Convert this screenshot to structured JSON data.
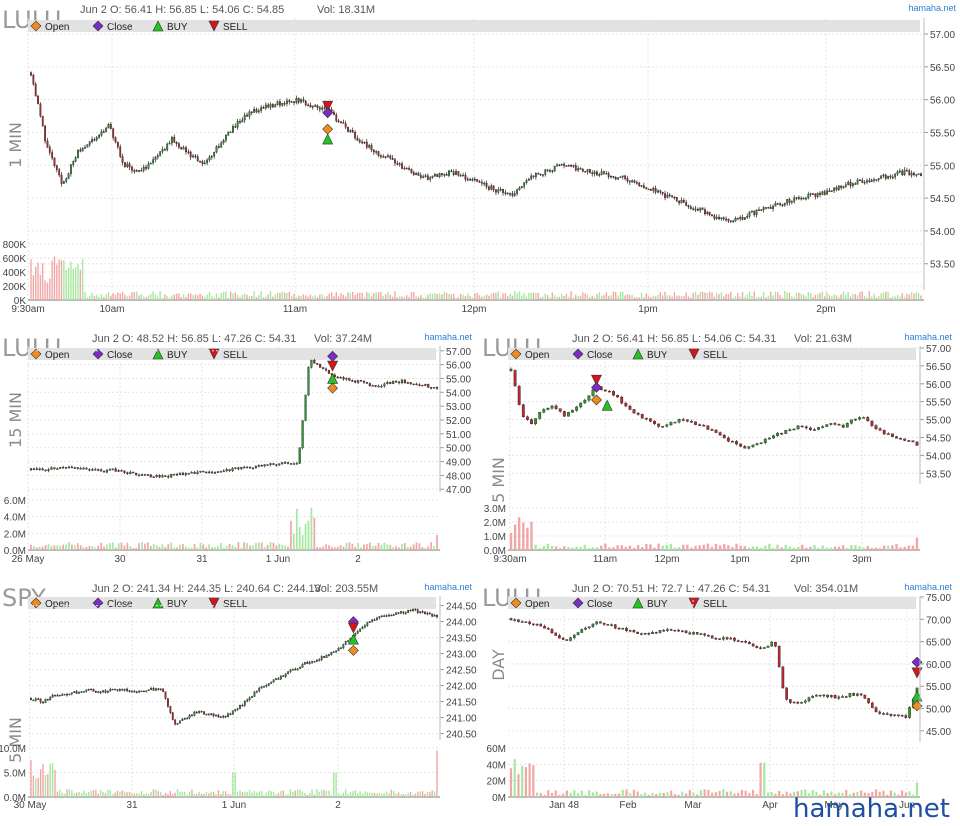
{
  "site": "hamaha.net",
  "watermark": "hamaha.net",
  "legend": {
    "open": "Open",
    "close": "Close",
    "buy": "BUY",
    "sell": "SELL"
  },
  "colors": {
    "up": "#2e9a2e",
    "down": "#c0282e",
    "open_marker": "#f08c1e",
    "close_marker": "#7b2cc4",
    "buy_marker": "#22c322",
    "sell_marker": "#d4161c",
    "vol_up": "#a7e8a0",
    "vol_down": "#f2a7a7",
    "legend_bar": "#e2e2e2",
    "grid": "#e4e4e4",
    "watermark": "#1f4fa3"
  },
  "chart_data": [
    {
      "id": "lulu-1min",
      "type": "candlestick",
      "symbol": "LULU",
      "timeframe": "1 MIN",
      "header": {
        "date": "Jun 2",
        "open": "56.41",
        "high": "56.85",
        "low": "54.06",
        "close": "54.85",
        "vol": "18.31M"
      },
      "ylim": [
        53.1,
        57.0
      ],
      "y_ticks": [
        "57.00",
        "56.50",
        "56.00",
        "55.50",
        "55.00",
        "54.50",
        "54.00",
        "53.50"
      ],
      "x_ticks": [
        "9:30am",
        "10am",
        "11am",
        "12pm",
        "1pm",
        "2pm"
      ],
      "vol_ticks": [
        "800K",
        "600K",
        "400K",
        "200K",
        "0K"
      ],
      "vol_max": 900000,
      "series": [
        56.41,
        55.3,
        54.7,
        55.2,
        55.4,
        55.6,
        55.0,
        54.9,
        55.1,
        55.4,
        55.2,
        55.0,
        55.3,
        55.6,
        55.8,
        55.9,
        55.95,
        56.0,
        55.9,
        55.85,
        55.6,
        55.4,
        55.2,
        55.1,
        54.95,
        54.8,
        54.85,
        54.9,
        54.8,
        54.7,
        54.6,
        54.55,
        54.85,
        54.9,
        55.0,
        54.95,
        54.9,
        54.85,
        54.8,
        54.7,
        54.6,
        54.5,
        54.4,
        54.3,
        54.2,
        54.15,
        54.25,
        54.35,
        54.4,
        54.5,
        54.55,
        54.6,
        54.7,
        54.75,
        54.8,
        54.85,
        54.9,
        54.85
      ],
      "markers": [
        {
          "kind": "sell",
          "index": 19,
          "price": 55.9
        },
        {
          "kind": "close",
          "index": 19,
          "price": 55.8
        },
        {
          "kind": "buy",
          "index": 19,
          "price": 55.4
        },
        {
          "kind": "open",
          "index": 19,
          "price": 55.55
        }
      ]
    },
    {
      "id": "lulu-15min",
      "type": "candlestick",
      "symbol": "LULU",
      "timeframe": "15 MIN",
      "header": {
        "date": "Jun 2",
        "open": "48.52",
        "high": "56.85",
        "low": "47.26",
        "close": "54.31",
        "vol": "37.24M"
      },
      "ylim": [
        46.8,
        57.2
      ],
      "y_ticks": [
        "57.00",
        "56.00",
        "55.00",
        "54.00",
        "53.00",
        "52.00",
        "51.00",
        "50.00",
        "49.00",
        "48.00",
        "47.00"
      ],
      "x_ticks": [
        "26 May",
        "30",
        "31",
        "1 Jun",
        "2"
      ],
      "vol_ticks": [
        "6.0M",
        "4.0M",
        "2.0M",
        "0.0M"
      ],
      "vol_max": 6500000,
      "series": [
        48.5,
        48.4,
        48.5,
        48.6,
        48.5,
        48.4,
        48.3,
        48.4,
        48.2,
        48.1,
        48.0,
        47.9,
        48.0,
        48.1,
        48.2,
        48.3,
        48.2,
        48.4,
        48.5,
        48.6,
        48.7,
        48.8,
        48.9,
        48.8,
        56.4,
        55.8,
        55.2,
        55.0,
        54.8,
        54.6,
        54.5,
        54.7,
        54.8,
        54.6,
        54.5,
        54.31
      ],
      "markers": [
        {
          "kind": "close",
          "index": 26,
          "price": 56.6
        },
        {
          "kind": "sell",
          "index": 26,
          "price": 55.9
        },
        {
          "kind": "buy",
          "index": 26,
          "price": 55.0
        },
        {
          "kind": "open",
          "index": 26,
          "price": 54.3
        }
      ]
    },
    {
      "id": "lulu-5min",
      "type": "candlestick",
      "symbol": "LULU",
      "timeframe": "5 MIN",
      "header": {
        "date": "Jun 2",
        "open": "56.41",
        "high": "56.85",
        "low": "54.06",
        "close": "54.31",
        "vol": "21.63M"
      },
      "ylim": [
        53.2,
        57.0
      ],
      "y_ticks": [
        "57.00",
        "56.50",
        "56.00",
        "55.50",
        "55.00",
        "54.50",
        "54.00",
        "53.50"
      ],
      "x_ticks": [
        "9:30am",
        "11am",
        "12pm",
        "1pm",
        "2pm",
        "3pm"
      ],
      "vol_ticks": [
        "3.0M",
        "2.0M",
        "1.0M",
        "0.0M"
      ],
      "vol_max": 3200000,
      "series": [
        56.41,
        55.1,
        54.9,
        55.3,
        55.4,
        55.1,
        55.3,
        55.6,
        55.9,
        55.8,
        55.6,
        55.3,
        55.1,
        55.0,
        54.8,
        54.9,
        55.0,
        54.9,
        54.8,
        54.7,
        54.5,
        54.3,
        54.2,
        54.3,
        54.5,
        54.6,
        54.7,
        54.8,
        54.7,
        54.8,
        54.9,
        54.8,
        55.0,
        55.1,
        54.8,
        54.6,
        54.5,
        54.4,
        54.31
      ],
      "markers": [
        {
          "kind": "sell",
          "index": 8,
          "price": 56.1
        },
        {
          "kind": "close",
          "index": 8,
          "price": 55.9
        },
        {
          "kind": "open",
          "index": 8,
          "price": 55.55
        },
        {
          "kind": "buy",
          "index": 9,
          "price": 55.4
        }
      ]
    },
    {
      "id": "spy-5min",
      "type": "candlestick",
      "symbol": "SPY",
      "timeframe": "5 MIN",
      "header": {
        "date": "Jun 2",
        "open": "241.34",
        "high": "244.35",
        "low": "240.64",
        "close": "244.13",
        "vol": "203.55M"
      },
      "ylim": [
        240.3,
        244.8
      ],
      "y_ticks": [
        "244.50",
        "244.00",
        "243.50",
        "243.00",
        "242.50",
        "242.00",
        "241.50",
        "241.00",
        "240.50"
      ],
      "x_ticks": [
        "30 May",
        "31",
        "1 Jun",
        "2"
      ],
      "vol_ticks": [
        "10.0M",
        "5.0M",
        "0.0M"
      ],
      "vol_max": 11000000,
      "series": [
        241.6,
        241.5,
        241.7,
        241.75,
        241.8,
        241.85,
        241.8,
        241.9,
        241.85,
        241.8,
        241.9,
        241.85,
        240.8,
        241.0,
        241.2,
        241.1,
        241.0,
        241.2,
        241.5,
        241.9,
        242.1,
        242.3,
        242.5,
        242.7,
        242.8,
        243.0,
        243.2,
        243.6,
        243.9,
        244.1,
        244.2,
        244.3,
        244.35,
        244.25,
        244.13
      ],
      "markers": [
        {
          "kind": "close",
          "index": 27,
          "price": 244.0
        },
        {
          "kind": "sell",
          "index": 27,
          "price": 243.8
        },
        {
          "kind": "buy",
          "index": 27,
          "price": 243.45
        },
        {
          "kind": "open",
          "index": 27,
          "price": 243.1
        }
      ]
    },
    {
      "id": "lulu-day",
      "type": "candlestick",
      "symbol": "LULU",
      "timeframe": "DAY",
      "header": {
        "date": "Jun 2",
        "open": "70.51",
        "high": "72.7",
        "low": "47.26",
        "close": "54.31",
        "vol": "354.01M"
      },
      "ylim": [
        42.5,
        75.0
      ],
      "y_ticks": [
        "75.00",
        "70.00",
        "65.00",
        "60.00",
        "55.00",
        "50.00",
        "45.00"
      ],
      "x_ticks": [
        "Jan 48",
        "Feb",
        "Mar",
        "Apr",
        "May",
        "Jun"
      ],
      "vol_ticks": [
        "60M",
        "40M",
        "20M",
        "0M"
      ],
      "vol_max": 65000000,
      "series": [
        70.2,
        69.6,
        69.0,
        68.0,
        66.5,
        65.3,
        67.0,
        68.4,
        69.5,
        68.6,
        68.0,
        67.3,
        66.8,
        67.2,
        67.6,
        67.4,
        67.0,
        66.8,
        66.2,
        65.8,
        65.6,
        65.0,
        64.2,
        63.5,
        65.0,
        52.0,
        51.0,
        52.2,
        53.0,
        52.8,
        52.5,
        53.3,
        52.8,
        49.7,
        48.9,
        48.6,
        48.2,
        54.31
      ],
      "markers": [
        {
          "kind": "close",
          "index": 37,
          "price": 60.4
        },
        {
          "kind": "sell",
          "index": 37,
          "price": 58.0
        },
        {
          "kind": "buy",
          "index": 37,
          "price": 52.8
        },
        {
          "kind": "open",
          "index": 37,
          "price": 50.6
        }
      ]
    }
  ]
}
